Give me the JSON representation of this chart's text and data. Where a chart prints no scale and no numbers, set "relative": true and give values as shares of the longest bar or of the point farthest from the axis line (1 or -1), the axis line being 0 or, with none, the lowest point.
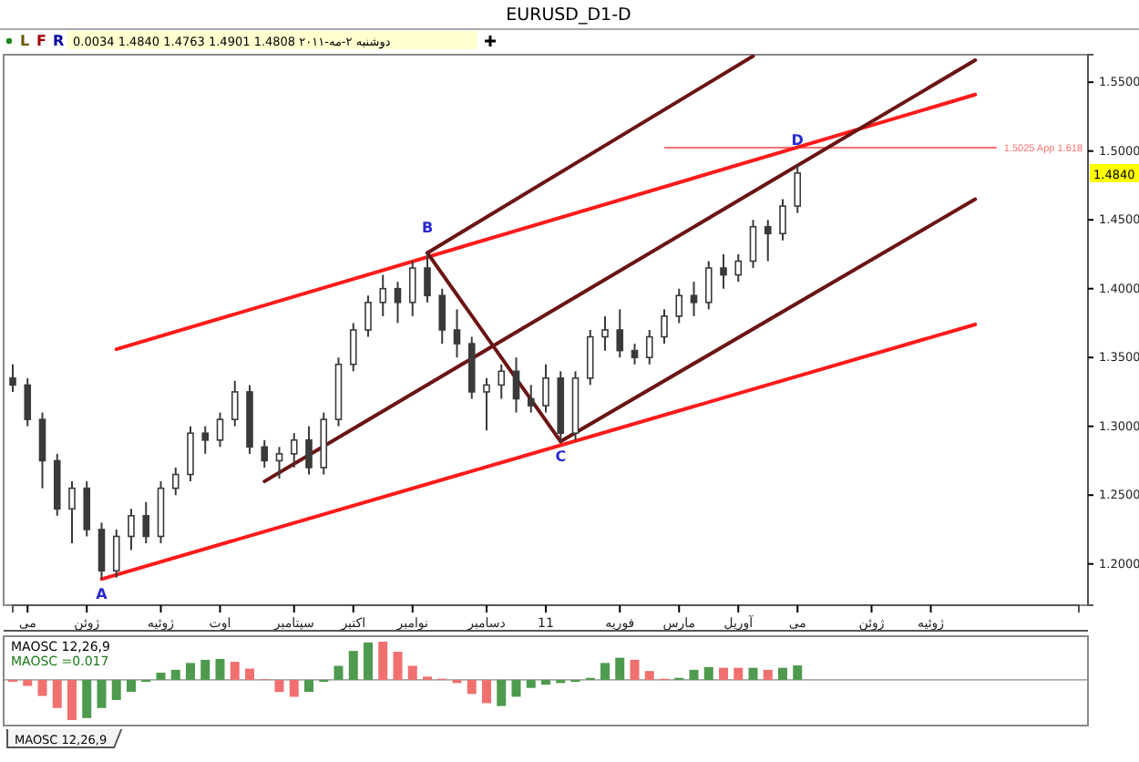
{
  "chart_data": [
    {
      "type": "candlestick",
      "title": "EURUSD_D1-D",
      "subtitle": "دوشنبه ۲-مه-۲۰۱۱   1.4808   1.4901   1.4763   1.4840   0.0034",
      "color": "#3a3a3a",
      "categories": [
        null,
        "مى",
        null,
        null,
        null,
        "ژوئن",
        null,
        null,
        null,
        null,
        "ژوئیه",
        null,
        null,
        null,
        "اوت",
        null,
        null,
        null,
        null,
        "سپتامبر",
        null,
        null,
        null,
        "اکتبر",
        null,
        null,
        null,
        "نوامبر",
        null,
        null,
        null,
        null,
        "دسامبر",
        null,
        null,
        null,
        "11",
        null,
        null,
        null,
        null,
        "فوریه",
        null,
        null,
        null,
        "مارس",
        null,
        null,
        null,
        "آوریل",
        null,
        null,
        null,
        "مى",
        null,
        null,
        null,
        null,
        "ژوئن",
        null,
        null,
        null,
        "ژوئیه",
        null,
        null,
        null,
        null,
        null,
        null,
        null,
        null,
        null,
        null
      ],
      "ohlc": [
        [
          1.335,
          1.345,
          1.325,
          1.33
        ],
        [
          1.33,
          1.335,
          1.3,
          1.305
        ],
        [
          1.305,
          1.31,
          1.255,
          1.275
        ],
        [
          1.275,
          1.28,
          1.235,
          1.24
        ],
        [
          1.24,
          1.26,
          1.215,
          1.255
        ],
        [
          1.255,
          1.26,
          1.22,
          1.225
        ],
        [
          1.225,
          1.23,
          1.189,
          1.195
        ],
        [
          1.195,
          1.225,
          1.19,
          1.22
        ],
        [
          1.22,
          1.24,
          1.21,
          1.235
        ],
        [
          1.235,
          1.245,
          1.215,
          1.22
        ],
        [
          1.22,
          1.26,
          1.215,
          1.255
        ],
        [
          1.255,
          1.27,
          1.25,
          1.265
        ],
        [
          1.265,
          1.3,
          1.26,
          1.295
        ],
        [
          1.295,
          1.3,
          1.28,
          1.29
        ],
        [
          1.29,
          1.31,
          1.285,
          1.305
        ],
        [
          1.305,
          1.333,
          1.3,
          1.325
        ],
        [
          1.325,
          1.33,
          1.28,
          1.285
        ],
        [
          1.285,
          1.29,
          1.27,
          1.275
        ],
        [
          1.275,
          1.285,
          1.262,
          1.28
        ],
        [
          1.28,
          1.295,
          1.27,
          1.29
        ],
        [
          1.29,
          1.3,
          1.265,
          1.27
        ],
        [
          1.27,
          1.31,
          1.265,
          1.305
        ],
        [
          1.305,
          1.35,
          1.3,
          1.345
        ],
        [
          1.345,
          1.375,
          1.34,
          1.37
        ],
        [
          1.37,
          1.395,
          1.365,
          1.39
        ],
        [
          1.39,
          1.41,
          1.38,
          1.4
        ],
        [
          1.4,
          1.405,
          1.375,
          1.39
        ],
        [
          1.39,
          1.42,
          1.38,
          1.415
        ],
        [
          1.415,
          1.426,
          1.39,
          1.395
        ],
        [
          1.395,
          1.4,
          1.36,
          1.37
        ],
        [
          1.37,
          1.385,
          1.35,
          1.36
        ],
        [
          1.36,
          1.365,
          1.32,
          1.325
        ],
        [
          1.325,
          1.335,
          1.297,
          1.33
        ],
        [
          1.33,
          1.345,
          1.32,
          1.34
        ],
        [
          1.34,
          1.35,
          1.31,
          1.32
        ],
        [
          1.32,
          1.33,
          1.31,
          1.315
        ],
        [
          1.315,
          1.345,
          1.31,
          1.335
        ],
        [
          1.335,
          1.34,
          1.289,
          1.295
        ],
        [
          1.295,
          1.34,
          1.29,
          1.335
        ],
        [
          1.335,
          1.37,
          1.33,
          1.365
        ],
        [
          1.365,
          1.38,
          1.355,
          1.37
        ],
        [
          1.37,
          1.385,
          1.35,
          1.355
        ],
        [
          1.355,
          1.36,
          1.345,
          1.35
        ],
        [
          1.35,
          1.37,
          1.345,
          1.365
        ],
        [
          1.365,
          1.385,
          1.36,
          1.38
        ],
        [
          1.38,
          1.4,
          1.375,
          1.395
        ],
        [
          1.395,
          1.405,
          1.38,
          1.39
        ],
        [
          1.39,
          1.42,
          1.385,
          1.415
        ],
        [
          1.415,
          1.425,
          1.4,
          1.41
        ],
        [
          1.41,
          1.425,
          1.405,
          1.42
        ],
        [
          1.42,
          1.45,
          1.415,
          1.445
        ],
        [
          1.445,
          1.45,
          1.42,
          1.44
        ],
        [
          1.44,
          1.465,
          1.435,
          1.46
        ],
        [
          1.46,
          1.49,
          1.455,
          1.484
        ],
        null,
        null,
        null,
        null,
        null,
        null,
        null,
        null,
        null,
        null,
        null,
        null,
        null,
        null,
        null,
        null,
        null,
        null,
        null
      ],
      "series": [
        {
          "type": "line",
          "color": "#ff1a1a",
          "values": [
            null,
            null,
            null,
            null,
            null,
            null,
            1.189,
            null,
            null,
            null,
            null,
            null,
            null,
            null,
            null,
            null,
            null,
            null,
            null,
            null,
            null,
            null,
            null,
            null,
            null,
            null,
            null,
            null,
            null,
            null,
            null,
            null,
            null,
            null,
            null,
            null,
            null,
            null,
            null,
            null,
            null,
            null,
            null,
            null,
            null,
            null,
            null,
            null,
            null,
            null,
            null,
            null,
            null,
            null,
            null,
            null,
            null,
            null,
            null,
            null,
            null,
            null,
            null,
            null,
            null,
            1.374,
            null,
            null,
            null,
            null,
            null,
            null,
            null
          ]
        },
        {
          "type": "line",
          "color": "#ff1a1a",
          "values": [
            null,
            null,
            null,
            null,
            null,
            null,
            null,
            1.356,
            null,
            null,
            null,
            null,
            null,
            null,
            null,
            null,
            null,
            null,
            null,
            null,
            null,
            null,
            null,
            null,
            null,
            null,
            null,
            null,
            null,
            null,
            null,
            null,
            null,
            null,
            null,
            null,
            null,
            null,
            null,
            null,
            null,
            null,
            null,
            null,
            null,
            null,
            null,
            null,
            null,
            null,
            null,
            null,
            null,
            null,
            null,
            null,
            null,
            null,
            null,
            null,
            null,
            null,
            null,
            null,
            null,
            1.541,
            null,
            null,
            null,
            null,
            null,
            null,
            null
          ]
        },
        {
          "type": "line",
          "color": "#6b1414",
          "values": [
            null,
            null,
            null,
            null,
            null,
            null,
            null,
            null,
            null,
            null,
            null,
            null,
            null,
            null,
            null,
            null,
            null,
            null,
            null,
            null,
            null,
            null,
            null,
            null,
            null,
            null,
            null,
            null,
            1.426,
            null,
            null,
            null,
            null,
            null,
            null,
            null,
            null,
            1.289,
            null,
            null,
            null,
            null,
            null,
            null,
            null,
            null,
            null,
            null,
            null,
            null,
            null,
            null,
            null,
            null,
            null,
            null,
            null,
            null,
            null,
            null,
            null,
            null,
            null,
            null,
            null,
            null,
            null,
            null,
            null,
            null,
            null,
            null,
            null
          ]
        },
        {
          "type": "line",
          "color": "#6b1414",
          "values": [
            null,
            null,
            null,
            null,
            null,
            null,
            null,
            null,
            null,
            null,
            null,
            null,
            null,
            null,
            null,
            null,
            null,
            null,
            null,
            null,
            null,
            null,
            null,
            null,
            null,
            null,
            null,
            null,
            1.426,
            null,
            null,
            null,
            null,
            null,
            null,
            null,
            null,
            null,
            null,
            null,
            null,
            null,
            null,
            null,
            null,
            null,
            null,
            null,
            null,
            null,
            1.569,
            null,
            null,
            null,
            null,
            null,
            null,
            null,
            null,
            null,
            null,
            null,
            null,
            null,
            null,
            null,
            null,
            null,
            null,
            null,
            null,
            null,
            null
          ]
        },
        {
          "type": "line",
          "color": "#6b1414",
          "values": [
            null,
            null,
            null,
            null,
            null,
            null,
            null,
            null,
            null,
            null,
            null,
            null,
            null,
            null,
            null,
            null,
            null,
            1.26,
            null,
            null,
            null,
            null,
            null,
            null,
            null,
            null,
            null,
            null,
            null,
            null,
            null,
            null,
            null,
            null,
            null,
            null,
            null,
            null,
            null,
            null,
            null,
            null,
            null,
            null,
            null,
            null,
            null,
            null,
            null,
            null,
            null,
            null,
            null,
            null,
            null,
            null,
            null,
            null,
            null,
            null,
            null,
            null,
            null,
            null,
            null,
            1.566,
            null,
            null,
            null,
            null,
            null,
            null,
            null
          ]
        },
        {
          "type": "line",
          "color": "#6b1414",
          "values": [
            null,
            null,
            null,
            null,
            null,
            null,
            null,
            null,
            null,
            null,
            null,
            null,
            null,
            null,
            null,
            null,
            null,
            null,
            null,
            null,
            null,
            null,
            null,
            null,
            null,
            null,
            null,
            null,
            null,
            null,
            null,
            null,
            null,
            null,
            null,
            null,
            null,
            1.289,
            null,
            null,
            null,
            null,
            null,
            null,
            null,
            null,
            null,
            null,
            null,
            null,
            null,
            null,
            null,
            null,
            null,
            null,
            null,
            null,
            null,
            null,
            null,
            null,
            null,
            null,
            null,
            1.465,
            null,
            null,
            null,
            null,
            null,
            null,
            null
          ]
        }
      ],
      "ref_lines": [
        {
          "axis": "y",
          "value": 1.5025,
          "label": "1.5025 App 1.618",
          "color": "#ff7070"
        }
      ],
      "annotations": [
        {
          "text": "A",
          "y": 1.189
        },
        {
          "text": "B",
          "y": 1.426
        },
        {
          "text": "C",
          "y": 1.289
        },
        {
          "text": "D",
          "y": 1.49
        },
        {
          "text": "1.4840",
          "y": 1.484
        },
        "L",
        "F",
        "R"
      ],
      "ylim": [
        1.17,
        1.57
      ],
      "yticks": [
        {
          "value": 1.2,
          "label": "1.2000"
        },
        {
          "value": 1.25,
          "label": "1.2500"
        },
        {
          "value": 1.3,
          "label": "1.3000"
        },
        {
          "value": 1.35,
          "label": "1.3500"
        },
        {
          "value": 1.4,
          "label": "1.4000"
        },
        {
          "value": 1.45,
          "label": "1.4500"
        },
        {
          "value": 1.5,
          "label": "1.5000"
        },
        {
          "value": 1.55,
          "label": "1.5500"
        }
      ]
    },
    {
      "type": "bar",
      "title": "MAOSC 12,26,9",
      "subtitle": "MAOSC =0.017",
      "relative": true,
      "categories": [
        null,
        null,
        null,
        null,
        null,
        null,
        null,
        null,
        null,
        null,
        null,
        null,
        null,
        null,
        null,
        null,
        null,
        null,
        null,
        null,
        null,
        null,
        null,
        null,
        null,
        null,
        null,
        null,
        null,
        null,
        null,
        null,
        null,
        null,
        null,
        null,
        null,
        null,
        null,
        null,
        null,
        null,
        null,
        null,
        null,
        null,
        null,
        null,
        null,
        null,
        null,
        null,
        null,
        null,
        null,
        null,
        null,
        null,
        null,
        null,
        null,
        null,
        null,
        null,
        null,
        null,
        null,
        null,
        null,
        null,
        null,
        null,
        null
      ],
      "values": [
        -0.05,
        -0.15,
        -0.4,
        -0.7,
        -1,
        -0.95,
        -0.7,
        -0.5,
        -0.3,
        -0.05,
        0.18,
        0.25,
        0.42,
        0.5,
        0.52,
        0.45,
        0.28,
        0.02,
        -0.3,
        -0.42,
        -0.3,
        -0.05,
        0.35,
        0.72,
        0.93,
        0.95,
        0.7,
        0.35,
        0.08,
        0.03,
        -0.08,
        -0.35,
        -0.58,
        -0.65,
        -0.42,
        -0.2,
        -0.12,
        -0.08,
        -0.05,
        0.05,
        0.42,
        0.55,
        0.5,
        0.22,
        0.03,
        0.05,
        0.25,
        0.32,
        0.3,
        0.3,
        0.3,
        0.25,
        0.3,
        0.36,
        null,
        null,
        null,
        null,
        null,
        null,
        null,
        null,
        null,
        null,
        null,
        null,
        null,
        null,
        null,
        null,
        null,
        null,
        null
      ],
      "colors": [
        "#f07070",
        "#f07070",
        "#f07070",
        "#f07070",
        "#f07070",
        "#4e9a4e",
        "#4e9a4e",
        "#4e9a4e",
        "#4e9a4e",
        "#4e9a4e",
        "#4e9a4e",
        "#4e9a4e",
        "#4e9a4e",
        "#4e9a4e",
        "#4e9a4e",
        "#f07070",
        "#f07070",
        "#f07070",
        "#f07070",
        "#f07070",
        "#4e9a4e",
        "#4e9a4e",
        "#4e9a4e",
        "#4e9a4e",
        "#4e9a4e",
        "#f07070",
        "#f07070",
        "#f07070",
        "#f07070",
        "#f07070",
        "#f07070",
        "#f07070",
        "#f07070",
        "#4e9a4e",
        "#4e9a4e",
        "#4e9a4e",
        "#4e9a4e",
        "#4e9a4e",
        "#4e9a4e",
        "#4e9a4e",
        "#4e9a4e",
        "#4e9a4e",
        "#f07070",
        "#f07070",
        "#f07070",
        "#4e9a4e",
        "#4e9a4e",
        "#4e9a4e",
        "#f07070",
        "#f07070",
        "#4e9a4e",
        "#f07070",
        "#4e9a4e",
        "#4e9a4e",
        null,
        null,
        null,
        null,
        null,
        null,
        null,
        null,
        null,
        null,
        null,
        null,
        null,
        null,
        null,
        null,
        null,
        null,
        null
      ],
      "annotations": [
        "MAOSC 12,26,9"
      ]
    }
  ]
}
